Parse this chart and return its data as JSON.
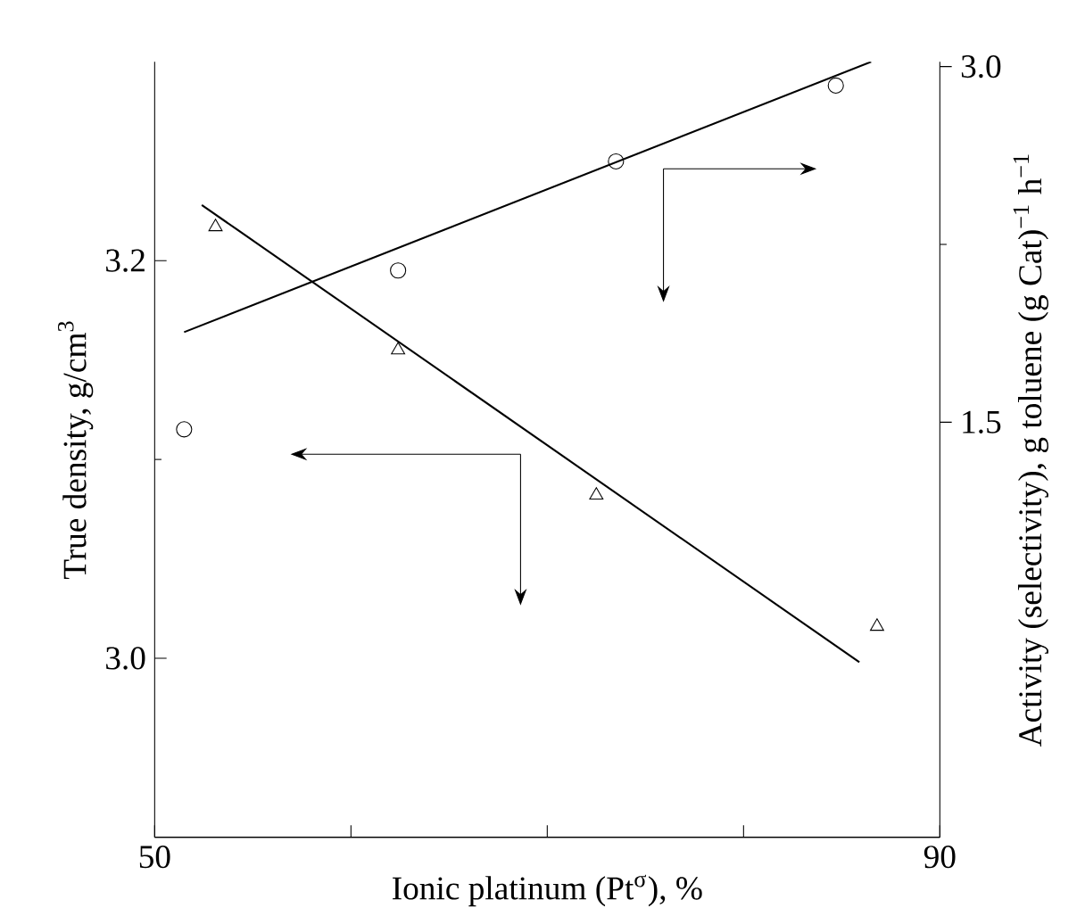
{
  "chart_data": {
    "type": "scatter",
    "xlabel": "Ionic platinum (Pt$^{σ}$), %",
    "ylabel": "True density, g/cm$^{3}$",
    "y2label": "Activity (selectivity), g toluene (g Cat)$^{−1}$ h$^{−1}$",
    "xlim": [
      50,
      90
    ],
    "xticks": [
      50,
      {
        "value": 60,
        "label": null
      },
      {
        "value": 70,
        "label": null
      },
      {
        "value": 80,
        "label": null
      },
      90
    ],
    "ylim": [
      2.91,
      3.3
    ],
    "yticks": [
      {
        "value": 3.0,
        "label": "3.0"
      },
      3.2
    ],
    "y2lim": [
      -0.25,
      3.02
    ],
    "y2ticks": [
      1.5,
      {
        "value": 3.0,
        "label": "3.0"
      }
    ],
    "series": [
      {
        "marker": "triangle",
        "color": "#000000",
        "x": [
          53.1,
          62.4,
          72.5,
          86.8
        ],
        "values": [
          3.217,
          3.155,
          3.082,
          3.016
        ]
      },
      {
        "type": "line",
        "marker": "none",
        "color": "#000000",
        "x": [
          52.4,
          85.9
        ],
        "values": [
          3.228,
          2.998
        ]
      },
      {
        "marker": "circle",
        "axis": "y2",
        "color": "#000000",
        "x": [
          51.5,
          62.4,
          73.5,
          84.7
        ],
        "values": [
          1.47,
          2.14,
          2.6,
          2.92
        ]
      },
      {
        "type": "line",
        "marker": "none",
        "axis": "y2",
        "color": "#000000",
        "x": [
          51.5,
          86.5
        ],
        "values": [
          1.88,
          3.02
        ]
      }
    ]
  }
}
